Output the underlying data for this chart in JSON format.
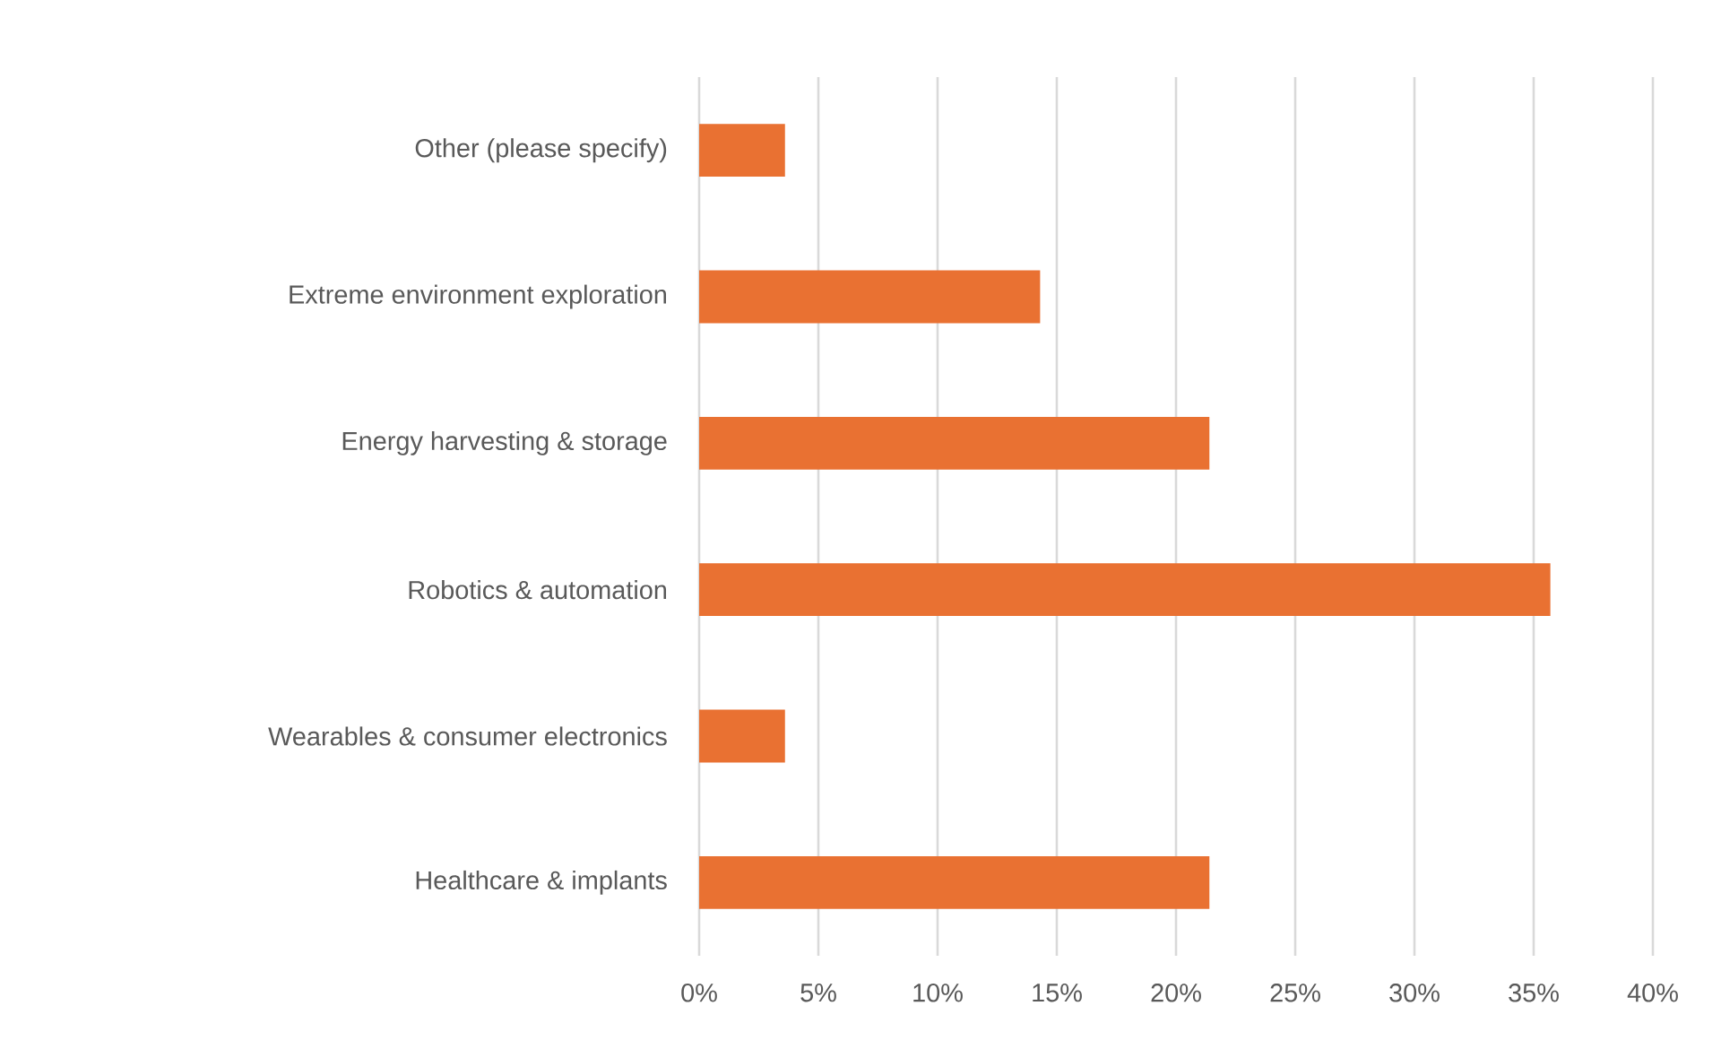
{
  "chart_data": {
    "type": "bar",
    "orientation": "horizontal",
    "categories": [
      "Other (please specify)",
      "Extreme environment exploration",
      "Energy harvesting & storage",
      "Robotics & automation",
      "Wearables & consumer electronics",
      "Healthcare & implants"
    ],
    "values": [
      3.6,
      14.3,
      21.4,
      35.7,
      3.6,
      21.4
    ],
    "color": "#e97132",
    "xlim": [
      0,
      40
    ],
    "xticks": [
      {
        "value": 0,
        "label": "0%"
      },
      {
        "value": 5,
        "label": "5%"
      },
      {
        "value": 10,
        "label": "10%"
      },
      {
        "value": 15,
        "label": "15%"
      },
      {
        "value": 20,
        "label": "20%"
      },
      {
        "value": 25,
        "label": "25%"
      },
      {
        "value": 30,
        "label": "30%"
      },
      {
        "value": 35,
        "label": "35%"
      },
      {
        "value": 40,
        "label": "40%"
      }
    ],
    "grid": "x"
  }
}
